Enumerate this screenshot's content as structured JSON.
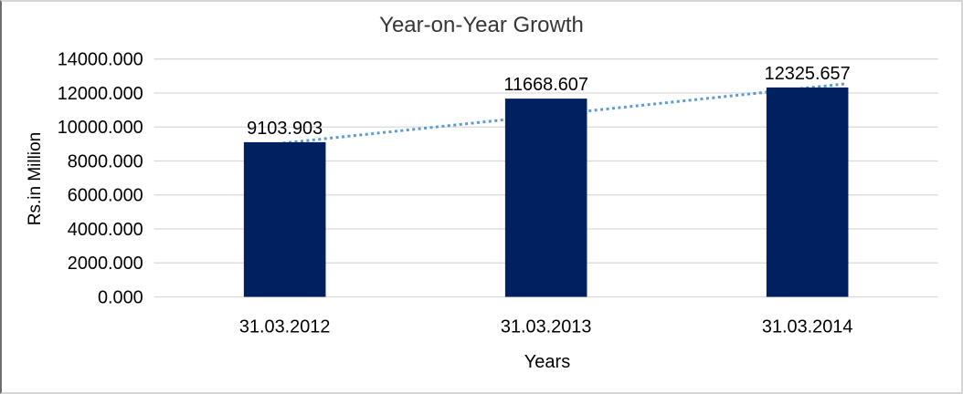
{
  "chart_data": {
    "type": "bar",
    "title": "Year-on-Year Growth",
    "categories": [
      "31.03.2012",
      "31.03.2013",
      "31.03.2014"
    ],
    "values": [
      9103.903,
      11668.607,
      12325.657
    ],
    "data_labels": [
      "9103.903",
      "11668.607",
      "12325.657"
    ],
    "xlabel": "Years",
    "ylabel": "Rs.in Million",
    "ylim": [
      0,
      14000
    ],
    "ytick_step": 2000,
    "ytick_labels": [
      "0.000",
      "2000.000",
      "4000.000",
      "6000.000",
      "8000.000",
      "10000.000",
      "12000.000",
      "14000.000"
    ],
    "grid": true,
    "legend": "none",
    "bar_color": "#002060",
    "gridline_color": "#d9d9d9",
    "trendline": {
      "type": "linear",
      "style": "dotted",
      "color": "#5b9bd5"
    }
  }
}
